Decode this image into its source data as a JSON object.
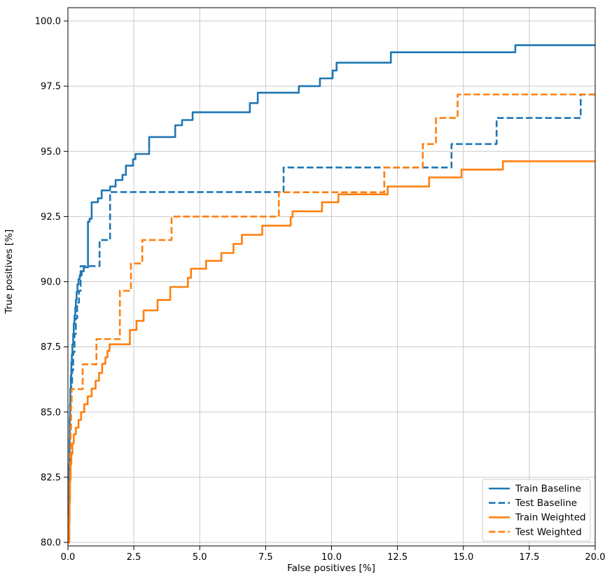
{
  "figure": {
    "xlabel": "False positives [%]",
    "ylabel": "True positives [%]"
  },
  "chart_data": {
    "type": "line",
    "subtype": "step-roc-curves",
    "title": "",
    "xlabel": "False positives [%]",
    "ylabel": "True positives [%]",
    "xlim": [
      0,
      20
    ],
    "ylim": [
      80,
      100.5
    ],
    "grid": true,
    "legend_position": "lower right",
    "x_tick_values": [
      0,
      2.5,
      5,
      7.5,
      10,
      12.5,
      15,
      17.5,
      20
    ],
    "x_tick_labels": [
      "0.0",
      "2.5",
      "5.0",
      "7.5",
      "10.0",
      "12.5",
      "15.0",
      "17.5",
      "20.0"
    ],
    "y_tick_values": [
      80,
      82.5,
      85,
      87.5,
      90,
      92.5,
      95,
      97.5,
      100
    ],
    "y_tick_labels": [
      "80.0",
      "82.5",
      "85.0",
      "87.5",
      "90.0",
      "92.5",
      "95.0",
      "97.5",
      "100.0"
    ],
    "colors": {
      "blue": "#1f77b4",
      "orange": "#ff7f0e"
    },
    "series": [
      {
        "name": "Train Baseline",
        "color": "#1f77b4",
        "style": "solid",
        "points": [
          [
            0,
            80
          ],
          [
            0.03,
            81.0
          ],
          [
            0.04,
            82.0
          ],
          [
            0.05,
            83.0
          ],
          [
            0.06,
            84.0
          ],
          [
            0.07,
            84.8
          ],
          [
            0.08,
            85.3
          ],
          [
            0.09,
            85.9
          ],
          [
            0.11,
            86.4
          ],
          [
            0.13,
            86.9
          ],
          [
            0.15,
            87.2
          ],
          [
            0.17,
            87.6
          ],
          [
            0.2,
            88.0
          ],
          [
            0.22,
            88.4
          ],
          [
            0.25,
            88.7
          ],
          [
            0.28,
            89.0
          ],
          [
            0.3,
            89.3
          ],
          [
            0.33,
            89.6
          ],
          [
            0.36,
            89.9
          ],
          [
            0.4,
            90.1
          ],
          [
            0.45,
            90.25
          ],
          [
            0.52,
            90.4
          ],
          [
            0.6,
            90.55
          ],
          [
            0.76,
            92.3
          ],
          [
            0.82,
            92.42
          ],
          [
            0.9,
            93.05
          ],
          [
            1.14,
            93.2
          ],
          [
            1.28,
            93.5
          ],
          [
            1.6,
            93.65
          ],
          [
            1.81,
            93.9
          ],
          [
            2.07,
            94.1
          ],
          [
            2.2,
            94.45
          ],
          [
            2.47,
            94.7
          ],
          [
            2.56,
            94.9
          ],
          [
            3.08,
            95.55
          ],
          [
            4.07,
            96.0
          ],
          [
            4.33,
            96.2
          ],
          [
            4.73,
            96.5
          ],
          [
            6.9,
            96.85
          ],
          [
            7.2,
            97.25
          ],
          [
            8.76,
            97.5
          ],
          [
            9.56,
            97.8
          ],
          [
            10.04,
            98.1
          ],
          [
            10.19,
            98.4
          ],
          [
            12.25,
            98.8
          ],
          [
            16.97,
            99.07
          ],
          [
            20,
            99.07
          ]
        ]
      },
      {
        "name": "Test Baseline",
        "color": "#1f77b4",
        "style": "dashed",
        "points": [
          [
            0,
            80
          ],
          [
            0.05,
            81.5
          ],
          [
            0.07,
            83.0
          ],
          [
            0.09,
            84.3
          ],
          [
            0.11,
            85.3
          ],
          [
            0.13,
            86.0
          ],
          [
            0.16,
            86.6
          ],
          [
            0.2,
            87.3
          ],
          [
            0.25,
            88.0
          ],
          [
            0.3,
            88.6
          ],
          [
            0.35,
            89.2
          ],
          [
            0.42,
            89.65
          ],
          [
            0.48,
            90.6
          ],
          [
            1.2,
            91.6
          ],
          [
            1.6,
            93.44
          ],
          [
            8.18,
            94.38
          ],
          [
            14.55,
            95.28
          ],
          [
            16.26,
            96.28
          ],
          [
            19.45,
            97.18
          ],
          [
            20,
            97.18
          ]
        ]
      },
      {
        "name": "Train Weighted",
        "color": "#ff7f0e",
        "style": "solid",
        "points": [
          [
            0,
            80
          ],
          [
            0.05,
            80.8
          ],
          [
            0.06,
            81.6
          ],
          [
            0.08,
            82.4
          ],
          [
            0.1,
            83.0
          ],
          [
            0.13,
            83.4
          ],
          [
            0.17,
            83.8
          ],
          [
            0.22,
            84.15
          ],
          [
            0.3,
            84.4
          ],
          [
            0.4,
            84.7
          ],
          [
            0.5,
            85.0
          ],
          [
            0.62,
            85.3
          ],
          [
            0.75,
            85.6
          ],
          [
            0.9,
            85.9
          ],
          [
            1.05,
            86.2
          ],
          [
            1.18,
            86.5
          ],
          [
            1.3,
            86.85
          ],
          [
            1.42,
            87.1
          ],
          [
            1.5,
            87.35
          ],
          [
            1.58,
            87.6
          ],
          [
            2.35,
            88.15
          ],
          [
            2.6,
            88.5
          ],
          [
            2.87,
            88.9
          ],
          [
            3.4,
            89.3
          ],
          [
            3.88,
            89.8
          ],
          [
            4.55,
            90.15
          ],
          [
            4.67,
            90.5
          ],
          [
            5.24,
            90.8
          ],
          [
            5.82,
            91.1
          ],
          [
            6.28,
            91.45
          ],
          [
            6.6,
            91.8
          ],
          [
            7.37,
            92.15
          ],
          [
            8.45,
            92.48
          ],
          [
            8.52,
            92.7
          ],
          [
            9.64,
            93.05
          ],
          [
            10.26,
            93.35
          ],
          [
            12.13,
            93.65
          ],
          [
            13.7,
            94.0
          ],
          [
            14.93,
            94.3
          ],
          [
            16.5,
            94.62
          ],
          [
            20,
            94.62
          ]
        ]
      },
      {
        "name": "Test Weighted",
        "color": "#ff7f0e",
        "style": "dashed",
        "points": [
          [
            0,
            80
          ],
          [
            0.04,
            81.0
          ],
          [
            0.06,
            82.3
          ],
          [
            0.08,
            83.4
          ],
          [
            0.1,
            84.4
          ],
          [
            0.12,
            85.3
          ],
          [
            0.14,
            85.88
          ],
          [
            0.56,
            86.83
          ],
          [
            1.08,
            87.8
          ],
          [
            1.97,
            89.65
          ],
          [
            2.39,
            90.7
          ],
          [
            2.82,
            91.6
          ],
          [
            3.93,
            92.5
          ],
          [
            8.0,
            93.43
          ],
          [
            12.0,
            94.38
          ],
          [
            13.46,
            95.28
          ],
          [
            13.96,
            96.28
          ],
          [
            14.78,
            97.18
          ],
          [
            20,
            97.18
          ]
        ]
      }
    ],
    "legend_entries": [
      "Train Baseline",
      "Test Baseline",
      "Train Weighted",
      "Test Weighted"
    ]
  }
}
